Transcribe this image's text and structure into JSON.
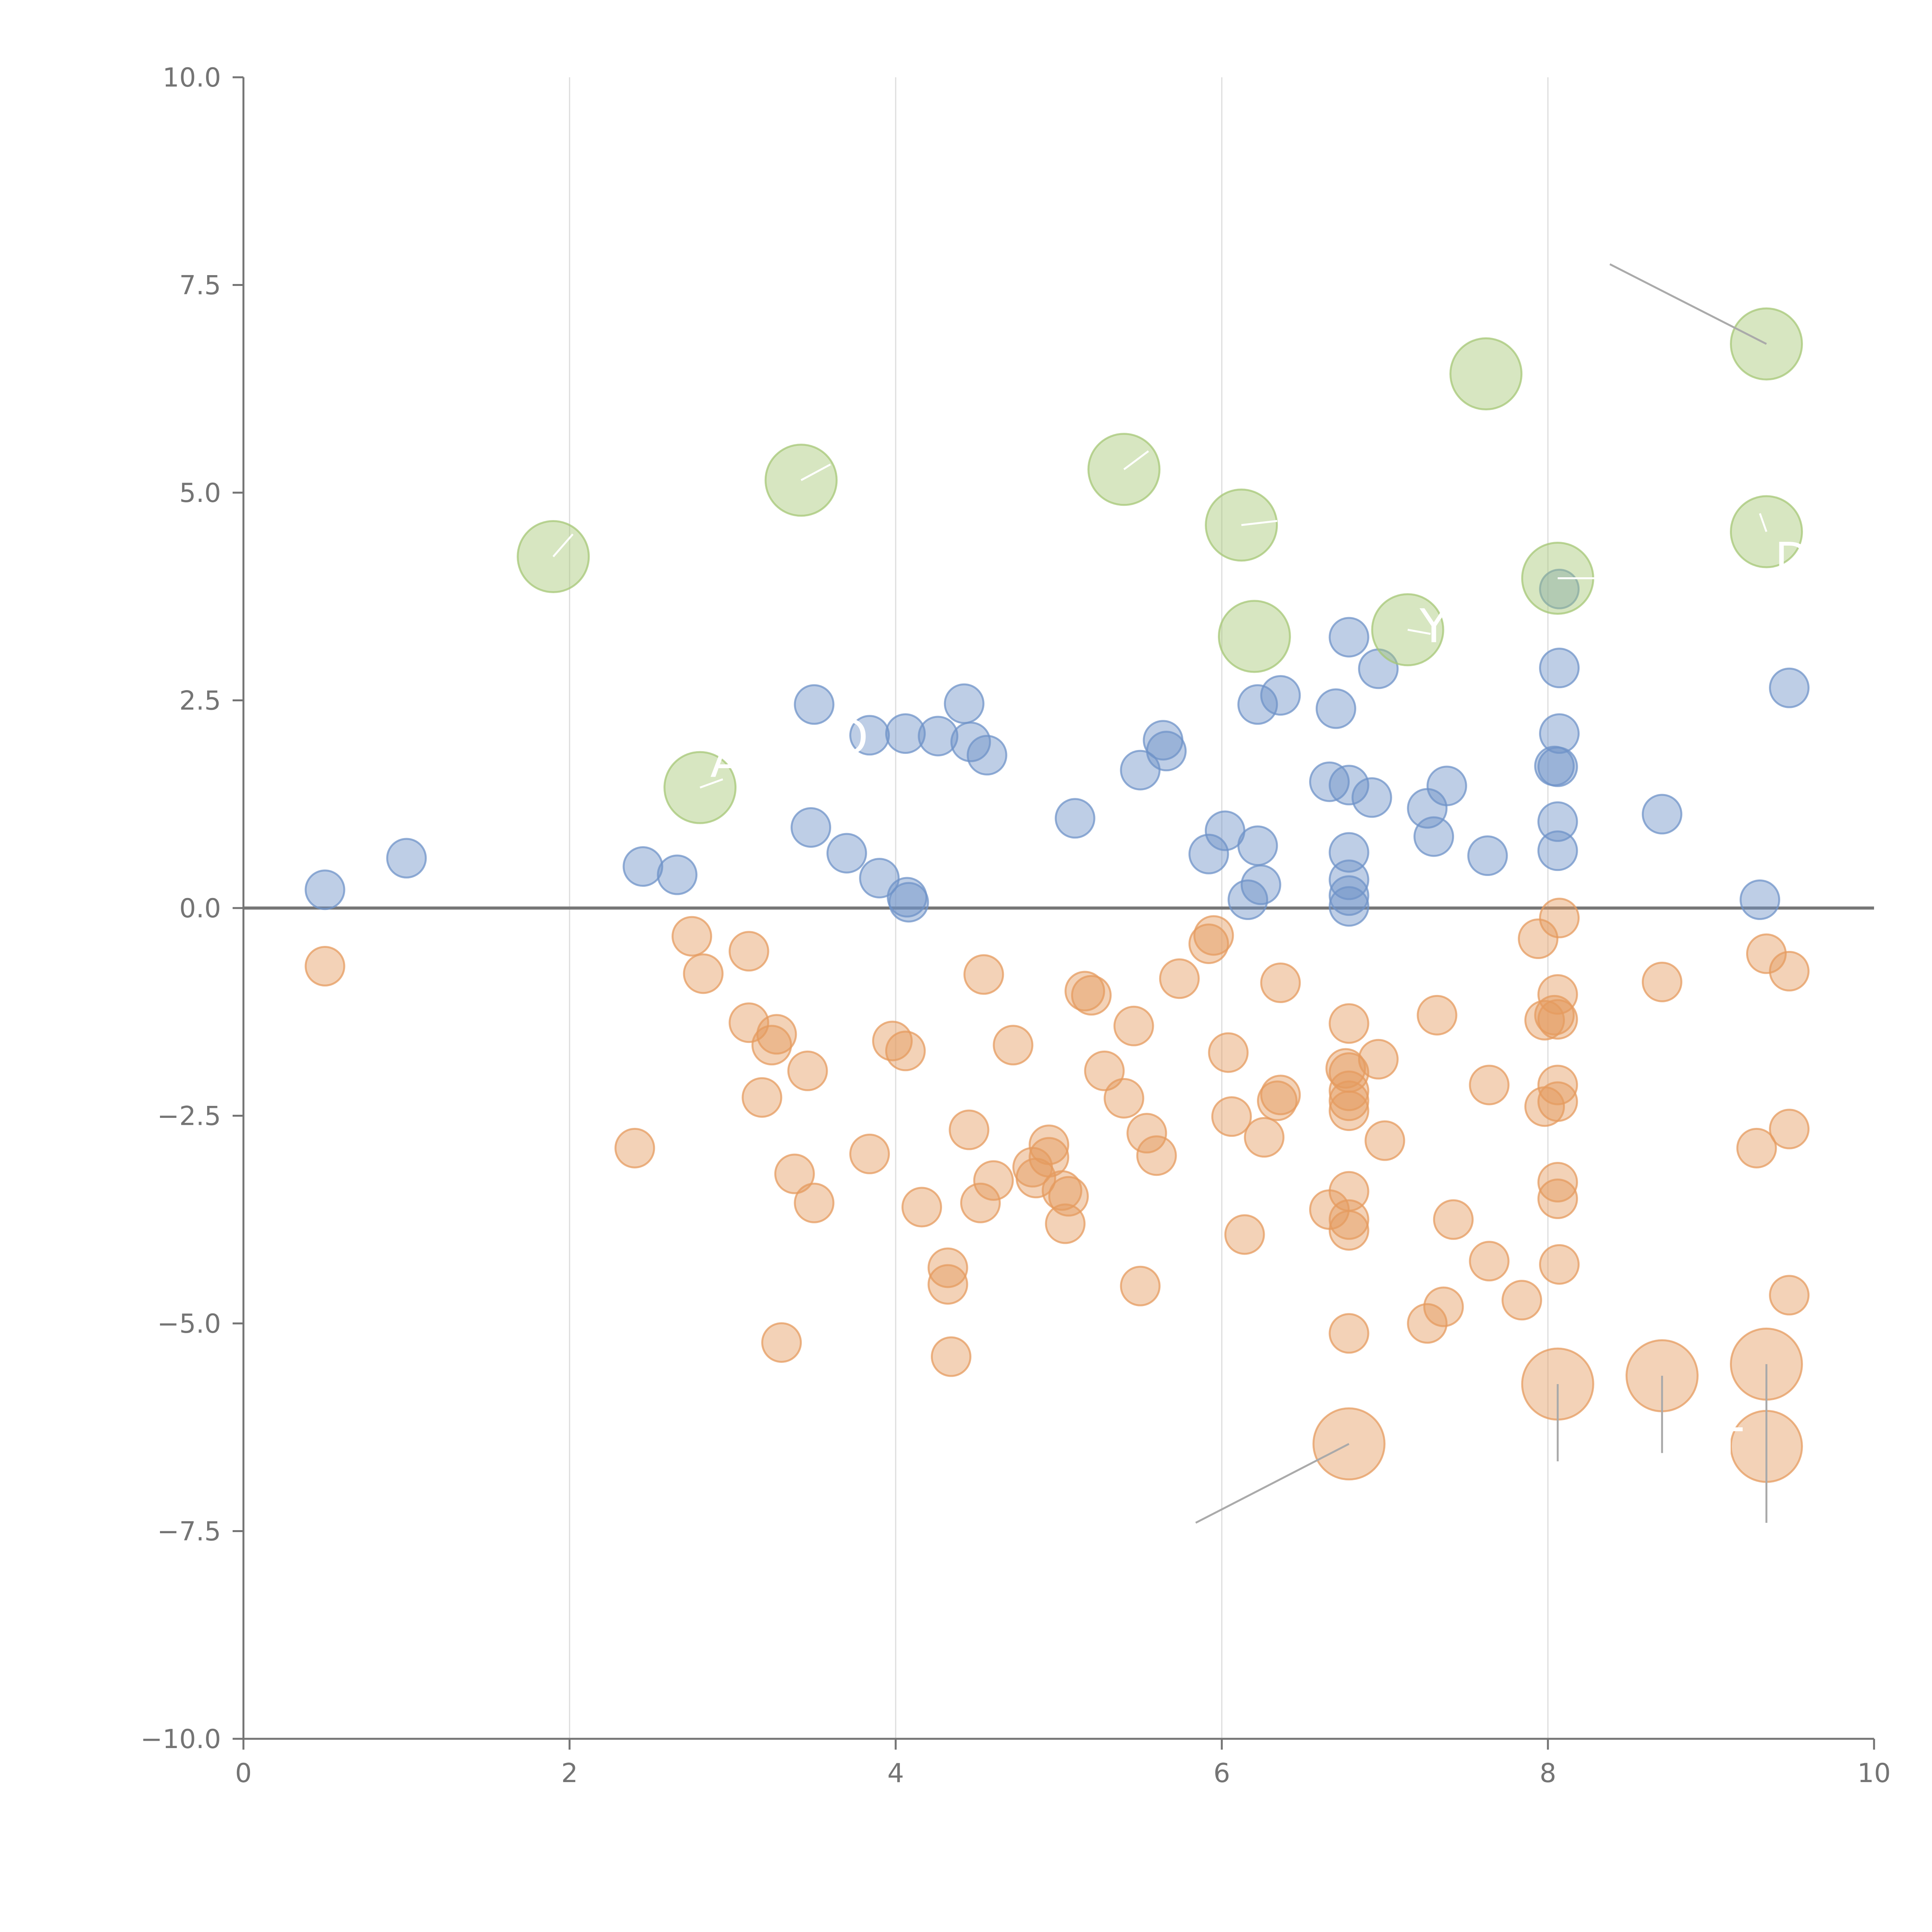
{
  "chart_data": {
    "type": "scatter",
    "title": "",
    "xlabel": "",
    "ylabel": "",
    "xlim": [
      0,
      10
    ],
    "ylim": [
      -10,
      10
    ],
    "x_ticks": [
      "0",
      "2",
      "4",
      "6",
      "8",
      "10"
    ],
    "y_ticks": [
      "−10.0",
      "−7.5",
      "−5.0",
      "−2.5",
      "0.0",
      "2.5",
      "5.0",
      "7.5",
      "10.0"
    ],
    "grid": "vertical",
    "reference_line_y": 0,
    "colors": {
      "series_positive": "#6f93c8",
      "series_negative": "#e59b5f",
      "highlight_positive": "#a6c775",
      "highlight_negative": "#e59b5f",
      "axis": "#747474",
      "grid": "#dcdcdc",
      "zero_line": "#777777"
    },
    "series": [
      {
        "name": "positive",
        "points": [
          [
            0.5,
            0.22
          ],
          [
            1.0,
            0.6
          ],
          [
            2.45,
            0.5
          ],
          [
            2.66,
            0.4
          ],
          [
            3.48,
            0.97
          ],
          [
            3.5,
            2.45
          ],
          [
            3.7,
            0.66
          ],
          [
            3.84,
            2.08
          ],
          [
            3.9,
            0.36
          ],
          [
            4.06,
            2.1
          ],
          [
            4.07,
            0.13
          ],
          [
            4.08,
            0.07
          ],
          [
            4.26,
            2.07
          ],
          [
            4.42,
            2.46
          ],
          [
            4.46,
            2.0
          ],
          [
            4.56,
            1.84
          ],
          [
            5.1,
            1.08
          ],
          [
            5.5,
            1.66
          ],
          [
            5.64,
            2.02
          ],
          [
            5.66,
            1.89
          ],
          [
            5.92,
            0.65
          ],
          [
            6.02,
            0.93
          ],
          [
            6.16,
            0.1
          ],
          [
            6.22,
            0.75
          ],
          [
            6.22,
            2.45
          ],
          [
            6.24,
            0.28
          ],
          [
            6.36,
            2.56
          ],
          [
            6.66,
            1.52
          ],
          [
            6.7,
            2.4
          ],
          [
            6.78,
            1.48
          ],
          [
            6.78,
            0.67
          ],
          [
            6.78,
            0.34
          ],
          [
            6.78,
            0.15
          ],
          [
            6.78,
            0.02
          ],
          [
            6.78,
            3.26
          ],
          [
            6.92,
            1.33
          ],
          [
            6.96,
            2.88
          ],
          [
            7.26,
            1.2
          ],
          [
            7.3,
            0.86
          ],
          [
            7.38,
            1.47
          ],
          [
            7.63,
            0.63
          ],
          [
            8.04,
            1.71
          ],
          [
            8.06,
            1.7
          ],
          [
            8.06,
            1.04
          ],
          [
            8.06,
            0.69
          ],
          [
            8.07,
            2.1
          ],
          [
            8.07,
            2.89
          ],
          [
            8.07,
            3.84
          ],
          [
            8.7,
            1.13
          ],
          [
            9.3,
            0.1
          ],
          [
            9.48,
            2.65
          ]
        ]
      },
      {
        "name": "negative",
        "points": [
          [
            0.5,
            -0.7
          ],
          [
            2.4,
            -2.89
          ],
          [
            2.75,
            -0.34
          ],
          [
            2.82,
            -0.79
          ],
          [
            3.1,
            -0.52
          ],
          [
            3.1,
            -1.38
          ],
          [
            3.18,
            -2.28
          ],
          [
            3.24,
            -1.65
          ],
          [
            3.27,
            -1.52
          ],
          [
            3.3,
            -5.23
          ],
          [
            3.38,
            -3.2
          ],
          [
            3.46,
            -1.96
          ],
          [
            3.5,
            -3.55
          ],
          [
            3.84,
            -2.96
          ],
          [
            3.98,
            -1.6
          ],
          [
            4.06,
            -1.72
          ],
          [
            4.16,
            -3.6
          ],
          [
            4.32,
            -4.33
          ],
          [
            4.32,
            -4.53
          ],
          [
            4.34,
            -5.4
          ],
          [
            4.45,
            -2.67
          ],
          [
            4.52,
            -3.55
          ],
          [
            4.54,
            -0.8
          ],
          [
            4.6,
            -3.28
          ],
          [
            4.72,
            -1.65
          ],
          [
            4.84,
            -3.12
          ],
          [
            4.86,
            -3.25
          ],
          [
            4.94,
            -2.85
          ],
          [
            4.94,
            -3.0
          ],
          [
            5.02,
            -3.4
          ],
          [
            5.04,
            -3.8
          ],
          [
            5.06,
            -3.47
          ],
          [
            5.16,
            -1.0
          ],
          [
            5.2,
            -1.05
          ],
          [
            5.28,
            -1.96
          ],
          [
            5.4,
            -2.29
          ],
          [
            5.46,
            -1.42
          ],
          [
            5.5,
            -4.55
          ],
          [
            5.54,
            -2.71
          ],
          [
            5.6,
            -2.98
          ],
          [
            5.74,
            -0.85
          ],
          [
            5.92,
            -0.43
          ],
          [
            5.95,
            -0.33
          ],
          [
            6.04,
            -1.74
          ],
          [
            6.06,
            -2.51
          ],
          [
            6.14,
            -3.93
          ],
          [
            6.26,
            -2.76
          ],
          [
            6.34,
            -2.32
          ],
          [
            6.36,
            -2.25
          ],
          [
            6.36,
            -0.9
          ],
          [
            6.66,
            -3.63
          ],
          [
            6.76,
            -1.93
          ],
          [
            6.78,
            -1.39
          ],
          [
            6.78,
            -1.98
          ],
          [
            6.78,
            -2.2
          ],
          [
            6.78,
            -2.32
          ],
          [
            6.78,
            -2.44
          ],
          [
            6.78,
            -3.41
          ],
          [
            6.78,
            -3.75
          ],
          [
            6.78,
            -3.88
          ],
          [
            6.78,
            -5.12
          ],
          [
            6.96,
            -1.82
          ],
          [
            7.0,
            -2.8
          ],
          [
            7.26,
            -5.0
          ],
          [
            7.32,
            -1.29
          ],
          [
            7.36,
            -4.8
          ],
          [
            7.42,
            -3.75
          ],
          [
            7.64,
            -2.13
          ],
          [
            7.64,
            -4.25
          ],
          [
            7.84,
            -4.72
          ],
          [
            7.94,
            -0.37
          ],
          [
            7.98,
            -2.39
          ],
          [
            7.98,
            -1.35
          ],
          [
            8.04,
            -1.29
          ],
          [
            8.06,
            -1.34
          ],
          [
            8.06,
            -1.04
          ],
          [
            8.06,
            -2.13
          ],
          [
            8.06,
            -2.33
          ],
          [
            8.06,
            -3.3
          ],
          [
            8.06,
            -3.5
          ],
          [
            8.07,
            -4.29
          ],
          [
            8.07,
            -0.12
          ],
          [
            8.7,
            -0.89
          ],
          [
            9.28,
            -2.89
          ],
          [
            9.34,
            -0.55
          ],
          [
            9.48,
            -0.76
          ],
          [
            9.48,
            -2.66
          ],
          [
            9.48,
            -4.66
          ]
        ]
      },
      {
        "name": "highlighted-positive",
        "points": [
          [
            1.9,
            4.23
          ],
          [
            2.8,
            1.45
          ],
          [
            3.42,
            5.15
          ],
          [
            5.4,
            5.28
          ],
          [
            6.12,
            4.61
          ],
          [
            6.2,
            3.27
          ],
          [
            7.14,
            3.35
          ],
          [
            7.62,
            6.43
          ],
          [
            8.06,
            3.97
          ],
          [
            9.34,
            6.79
          ],
          [
            9.34,
            4.53
          ]
        ]
      },
      {
        "name": "highlighted-negative",
        "points": [
          [
            6.78,
            -6.45
          ],
          [
            8.06,
            -5.73
          ],
          [
            8.7,
            -5.63
          ],
          [
            9.34,
            -5.49
          ],
          [
            9.34,
            -6.48
          ]
        ]
      }
    ],
    "annotations": [
      {
        "text": "D",
        "x": 9.5,
        "y": 4.0
      },
      {
        "text": "Y",
        "x": 7.3,
        "y": 3.2
      },
      {
        "text": "A",
        "x": 2.96,
        "y": 1.58
      },
      {
        "text": "O",
        "x": 3.72,
        "y": 1.86
      },
      {
        "text": "NT",
        "x": 9.0,
        "y": -6.66
      }
    ],
    "connectors": [
      {
        "x1": 9.34,
        "y1": 6.79,
        "x2": 8.38,
        "y2": 7.75,
        "color": "#aaaaaa"
      },
      {
        "x1": 6.78,
        "y1": -6.45,
        "x2": 5.84,
        "y2": -7.4,
        "color": "#aaaaaa"
      },
      {
        "x1": 8.06,
        "y1": -5.73,
        "x2": 8.06,
        "y2": -6.66,
        "color": "#aaaaaa"
      },
      {
        "x1": 8.7,
        "y1": -5.63,
        "x2": 8.7,
        "y2": -6.56,
        "color": "#aaaaaa"
      },
      {
        "x1": 9.34,
        "y1": -5.49,
        "x2": 9.34,
        "y2": -7.4,
        "color": "#aaaaaa"
      },
      {
        "x1": 1.9,
        "y1": 4.23,
        "x2": 2.02,
        "y2": 4.5,
        "color": "#ffffff"
      },
      {
        "x1": 3.42,
        "y1": 5.15,
        "x2": 3.6,
        "y2": 5.34,
        "color": "#ffffff"
      },
      {
        "x1": 5.4,
        "y1": 5.28,
        "x2": 5.55,
        "y2": 5.5,
        "color": "#ffffff"
      },
      {
        "x1": 6.12,
        "y1": 4.61,
        "x2": 6.34,
        "y2": 4.66,
        "color": "#ffffff"
      },
      {
        "x1": 9.34,
        "y1": 4.53,
        "x2": 9.3,
        "y2": 4.75,
        "color": "#ffffff"
      },
      {
        "x1": 8.06,
        "y1": 3.97,
        "x2": 8.3,
        "y2": 3.97,
        "color": "#ffffff"
      },
      {
        "x1": 7.14,
        "y1": 3.35,
        "x2": 7.28,
        "y2": 3.3,
        "color": "#ffffff"
      },
      {
        "x1": 2.8,
        "y1": 1.45,
        "x2": 2.94,
        "y2": 1.55,
        "color": "#ffffff"
      }
    ]
  }
}
